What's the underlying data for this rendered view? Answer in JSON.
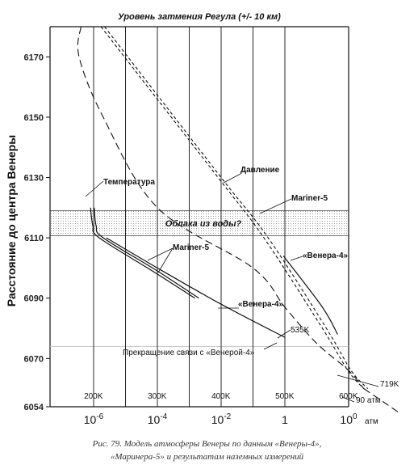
{
  "chart_data": {
    "type": "line",
    "title": "Уровень затмения Регула (+/- 10 км)",
    "ylabel": "Расстояние до центра Венеры",
    "ylim": [
      6054,
      6180
    ],
    "y_ticks": [
      6054,
      6070,
      6090,
      6110,
      6130,
      6150,
      6170
    ],
    "pressure_scale": "log",
    "x_ticks": [
      {
        "value": 1e-06,
        "label": "10-6"
      },
      {
        "value": 0.0001,
        "label": "10-4"
      },
      {
        "value": 0.01,
        "label": "10-2"
      },
      {
        "value": 1,
        "label": "1"
      },
      {
        "value": 100,
        "label": "100"
      }
    ],
    "x_unit": "атм",
    "temp_ticks": [
      "200K",
      "300K",
      "400K",
      "500K",
      "600K"
    ],
    "cloud_band": {
      "label": "Облака из воды?",
      "y_from": 6110.7,
      "y_to": 6119
    },
    "series": [
      {
        "key": "temperature",
        "style": "dashed",
        "points": [
          [
            4e-07,
            6180
          ],
          [
            3.5e-07,
            6170
          ],
          [
            2e-06,
            6150
          ],
          [
            0.0001,
            6120
          ],
          [
            0.1,
            6100
          ],
          [
            1,
            6087
          ],
          [
            10,
            6075
          ],
          [
            100,
            6066
          ],
          [
            300,
            6060
          ]
        ]
      },
      {
        "key": "pressure_a",
        "style": "dashed",
        "points": [
          [
            2.2e-06,
            6180
          ],
          [
            0.01,
            6130
          ],
          [
            0.3,
            6110
          ],
          [
            20,
            6080
          ],
          [
            120,
            6066
          ],
          [
            400,
            6060
          ]
        ]
      },
      {
        "key": "pressure_b",
        "style": "dashed",
        "points": [
          [
            1.7e-06,
            6180
          ],
          [
            0.008,
            6130
          ],
          [
            0.22,
            6110
          ],
          [
            15,
            6080
          ],
          [
            95,
            6066
          ],
          [
            300,
            6060
          ]
        ]
      },
      {
        "key": "mariner5_a",
        "style": "solid",
        "points": [
          [
            1.05e-06,
            6120
          ],
          [
            1.2e-06,
            6114
          ],
          [
            2e-06,
            6110
          ],
          [
            0.0001,
            6099
          ],
          [
            0.002,
            6090
          ]
        ]
      },
      {
        "key": "mariner5_b",
        "style": "solid",
        "points": [
          [
            8e-07,
            6120
          ],
          [
            9.5e-07,
            6114
          ],
          [
            1.5e-06,
            6110
          ],
          [
            7e-05,
            6099
          ],
          [
            0.0015,
            6090
          ]
        ]
      },
      {
        "key": "venera4_t",
        "style": "solid",
        "points": [
          [
            2.5e-06,
            6110
          ],
          [
            0.0001,
            6100
          ],
          [
            0.01,
            6088
          ],
          [
            1,
            6077
          ]
        ]
      },
      {
        "key": "venera4_p",
        "style": "solid",
        "points": [
          [
            0.9,
            6104
          ],
          [
            15,
            6087
          ],
          [
            45,
            6078
          ]
        ]
      }
    ],
    "annotations": {
      "temperature": "Температура",
      "pressure": "Давление",
      "mariner5_top": "Mariner-5",
      "mariner5_bottom": "Mariner-5",
      "venera4_right": "«Венера-4»",
      "venera4_left": "«Венера-4»",
      "temp_535": "535K",
      "signal_loss": "Прекращение связи с «Венерой-4»",
      "temp_719": "719K",
      "press_90": "90 атм"
    }
  },
  "caption": {
    "line1": "Рис. 79. Модель атмосферы Венеры по данным «Венеры-4»,",
    "line2": "«Маринера-5» и результатам наземных измерений"
  }
}
